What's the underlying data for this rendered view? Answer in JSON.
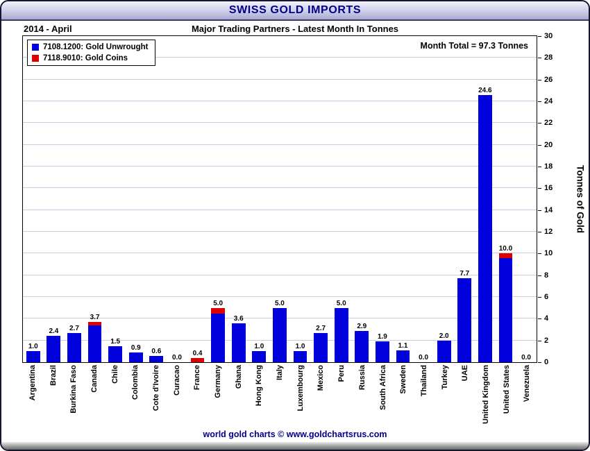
{
  "window": {
    "title": "SWISS GOLD IMPORTS"
  },
  "header": {
    "period": "2014 - April",
    "subtitle": "Major Trading Partners - Latest Month In Tonnes"
  },
  "annotations": {
    "month_total": "Month Total = 97.3 Tonnes"
  },
  "legend": {
    "items": [
      {
        "label": "7108.1200: Gold Unwrought",
        "color": "#0000dd"
      },
      {
        "label": "7118.9010: Gold Coins",
        "color": "#dd0000"
      }
    ]
  },
  "footer": {
    "credit": "world gold charts © www.goldchartsrus.com"
  },
  "colors": {
    "accent_navy": "#00008b",
    "gridline": "#c7d0e2",
    "bar_blue": "#0000dd",
    "bar_red": "#dd0000"
  },
  "chart_data": {
    "type": "bar",
    "stacked": true,
    "title": "SWISS GOLD IMPORTS",
    "subtitle": "Major Trading Partners - Latest Month In Tonnes",
    "xlabel": "",
    "ylabel": "Tonnes of Gold",
    "ylim": [
      0,
      30
    ],
    "ytick_step": 2,
    "grid": true,
    "legend_position": "top-left",
    "categories": [
      "Argentina",
      "Brazil",
      "Burkina Faso",
      "Canada",
      "Chile",
      "Colombia",
      "Cote d'Ivoire",
      "Curacao",
      "France",
      "Germany",
      "Ghana",
      "Hong Kong",
      "Italy",
      "Luxembourg",
      "Mexico",
      "Peru",
      "Russia",
      "South Africa",
      "Sweden",
      "Thailand",
      "Turkey",
      "UAE",
      "United Kingdom",
      "United States",
      "Venezuela"
    ],
    "series": [
      {
        "name": "7108.1200: Gold Unwrought",
        "color": "#0000dd",
        "values": [
          1.0,
          2.4,
          2.7,
          3.4,
          1.5,
          0.9,
          0.6,
          0.0,
          0.0,
          4.5,
          3.6,
          1.0,
          5.0,
          1.0,
          2.7,
          5.0,
          2.9,
          1.9,
          1.1,
          0.0,
          2.0,
          7.7,
          24.6,
          9.6,
          0.0
        ]
      },
      {
        "name": "7118.9010: Gold Coins",
        "color": "#dd0000",
        "values": [
          0.0,
          0.0,
          0.0,
          0.3,
          0.0,
          0.0,
          0.0,
          0.0,
          0.4,
          0.5,
          0.0,
          0.0,
          0.0,
          0.0,
          0.0,
          0.0,
          0.0,
          0.0,
          0.0,
          0.0,
          0.0,
          0.0,
          0.0,
          0.4,
          0.0
        ]
      }
    ],
    "total_labels": [
      "1.0",
      "2.4",
      "2.7",
      "3.7",
      "1.5",
      "0.9",
      "0.6",
      "0.0",
      "0.4",
      "5.0",
      "3.6",
      "1.0",
      "5.0",
      "1.0",
      "2.7",
      "5.0",
      "2.9",
      "1.9",
      "1.1",
      "0.0",
      "2.0",
      "7.7",
      "24.6",
      "10.0",
      "0.0"
    ]
  }
}
